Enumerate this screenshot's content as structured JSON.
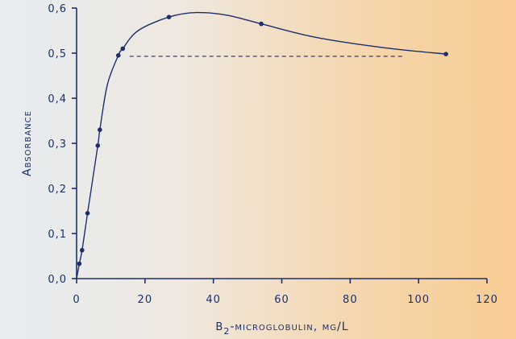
{
  "chart_data": {
    "type": "line",
    "x_axis": {
      "label_symbol": "β",
      "label_subscript": "2",
      "label_rest": "-microglobulin, mg/L",
      "range": [
        0,
        120
      ],
      "ticks": [
        0,
        20,
        40,
        60,
        80,
        100,
        120
      ],
      "tick_labels": [
        "0",
        "20",
        "40",
        "60",
        "80",
        "100",
        "120"
      ]
    },
    "y_axis": {
      "label": "Absorbance",
      "range": [
        0,
        0.6
      ],
      "ticks": [
        0,
        0.1,
        0.2,
        0.3,
        0.4,
        0.5,
        0.6
      ],
      "tick_labels": [
        "0,0",
        "0,1",
        "0,2",
        "0,3",
        "0,4",
        "0,5",
        "0,6"
      ]
    },
    "series": [
      {
        "points": [
          {
            "x": 0.8,
            "y": 0.033
          },
          {
            "x": 1.6,
            "y": 0.063
          },
          {
            "x": 3.2,
            "y": 0.145
          },
          {
            "x": 6.2,
            "y": 0.295
          },
          {
            "x": 6.8,
            "y": 0.33
          },
          {
            "x": 12.2,
            "y": 0.495
          },
          {
            "x": 13.5,
            "y": 0.51
          },
          {
            "x": 27,
            "y": 0.58
          },
          {
            "x": 54,
            "y": 0.565
          },
          {
            "x": 108,
            "y": 0.498
          }
        ],
        "curve_points": [
          {
            "x": 0,
            "y": 0
          },
          {
            "x": 0.8,
            "y": 0.033
          },
          {
            "x": 1.6,
            "y": 0.063
          },
          {
            "x": 3.2,
            "y": 0.145
          },
          {
            "x": 6.2,
            "y": 0.295
          },
          {
            "x": 6.8,
            "y": 0.33
          },
          {
            "x": 9,
            "y": 0.43
          },
          {
            "x": 12.2,
            "y": 0.495
          },
          {
            "x": 13.5,
            "y": 0.51
          },
          {
            "x": 18,
            "y": 0.55
          },
          {
            "x": 27,
            "y": 0.58
          },
          {
            "x": 35,
            "y": 0.59
          },
          {
            "x": 44,
            "y": 0.584
          },
          {
            "x": 54,
            "y": 0.565
          },
          {
            "x": 70,
            "y": 0.535
          },
          {
            "x": 90,
            "y": 0.512
          },
          {
            "x": 108,
            "y": 0.498
          }
        ]
      }
    ],
    "reference_line": {
      "y": 0.493,
      "x_start": 15.5,
      "x_end": 96,
      "style": "dashed"
    },
    "grid": false,
    "colors": {
      "ink": "#1c2f6b"
    }
  }
}
